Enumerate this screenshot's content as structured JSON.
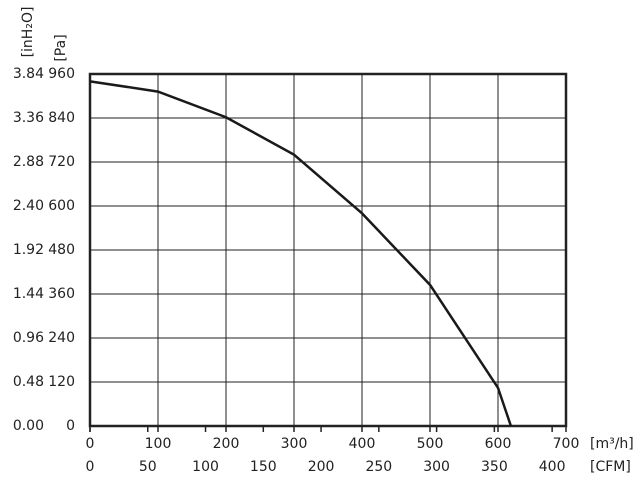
{
  "chart_data": {
    "type": "line",
    "y_label": "[Pa]",
    "y2_label": "[inH₂O]",
    "x_label": "[m³/h]",
    "x2_label": "[CFM]",
    "x": [
      0,
      100,
      200,
      300,
      400,
      500,
      600,
      619
    ],
    "series": [
      {
        "color": "#1a1a1a",
        "values": [
          940,
          912,
          842,
          740,
          580,
          385,
          104,
          0
        ]
      }
    ],
    "xlim": [
      0,
      700
    ],
    "xticks": [
      0,
      100,
      200,
      300,
      400,
      500,
      600,
      700
    ],
    "x2lim": [
      0,
      412
    ],
    "x2ticks": [
      0,
      50,
      100,
      150,
      200,
      250,
      300,
      350,
      400
    ],
    "ylim": [
      0,
      960
    ],
    "yticks": [
      0,
      120,
      240,
      360,
      480,
      600,
      720,
      840,
      960
    ],
    "y2lim": [
      0,
      3.84
    ],
    "y2ticks": [
      {
        "value": 0,
        "label": "0.00"
      },
      0.48,
      0.96,
      1.44,
      1.92,
      {
        "value": 2.4,
        "label": "2.40"
      },
      2.88,
      3.36,
      3.84
    ],
    "grid": true
  }
}
